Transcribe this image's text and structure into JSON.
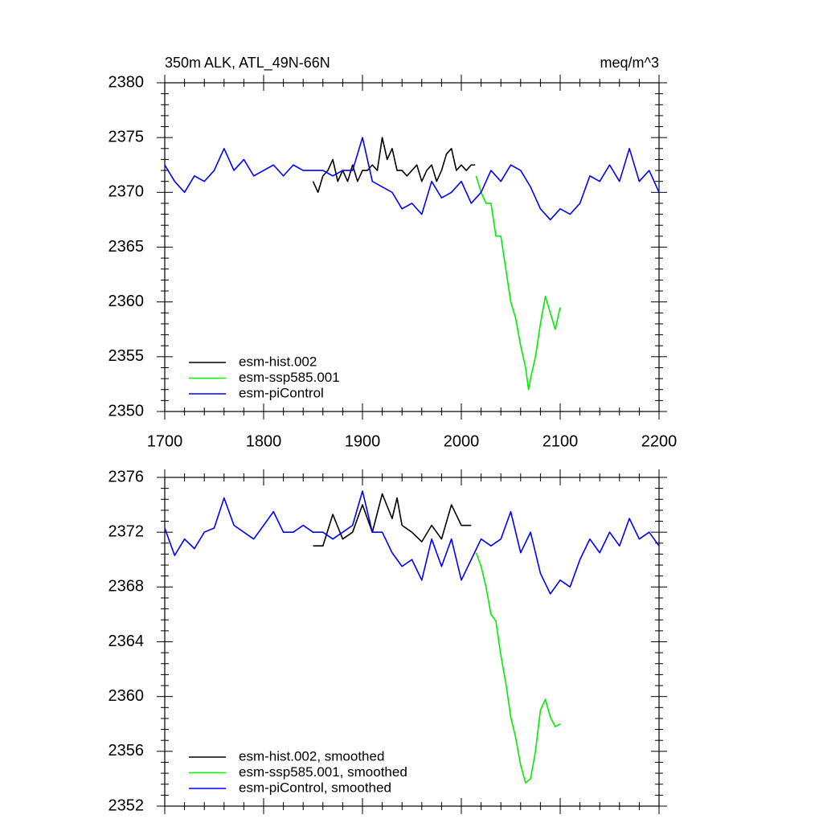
{
  "chart_data": [
    {
      "type": "line",
      "title": "350m ALK, ATL_49N-66N",
      "subtitle": "meq/m^3",
      "xlim": [
        1700,
        2200
      ],
      "xticks": [
        1700,
        1800,
        1900,
        2000,
        2100,
        2200
      ],
      "ylim": [
        2350,
        2380
      ],
      "yticks": [
        2350,
        2355,
        2360,
        2365,
        2370,
        2375,
        2380
      ],
      "legend": "lower left",
      "series": [
        {
          "name": "esm-hist.002",
          "color": "#000000",
          "x": [
            1850,
            1855,
            1860,
            1865,
            1870,
            1875,
            1880,
            1885,
            1890,
            1895,
            1900,
            1905,
            1910,
            1915,
            1920,
            1925,
            1930,
            1935,
            1940,
            1945,
            1950,
            1955,
            1960,
            1965,
            1970,
            1975,
            1980,
            1985,
            1990,
            1995,
            2000,
            2005,
            2010,
            2014
          ],
          "values": [
            2371,
            2370,
            2371.5,
            2372,
            2373,
            2371,
            2372,
            2371,
            2372.5,
            2371,
            2372,
            2372,
            2372.5,
            2372,
            2375,
            2373,
            2374,
            2372,
            2372,
            2371.5,
            2372,
            2372.5,
            2371,
            2372,
            2372.5,
            2371,
            2372,
            2373.5,
            2374,
            2372,
            2372.5,
            2372,
            2372.5,
            2372.5
          ]
        },
        {
          "name": "esm-ssp585.001",
          "color": "#00ee00",
          "x": [
            2015,
            2020,
            2025,
            2030,
            2035,
            2040,
            2045,
            2050,
            2055,
            2060,
            2065,
            2068,
            2070,
            2075,
            2080,
            2085,
            2090,
            2095,
            2100
          ],
          "values": [
            2371.5,
            2370,
            2369,
            2369,
            2366,
            2366,
            2363,
            2360,
            2358.5,
            2356,
            2354,
            2352,
            2353,
            2355,
            2358,
            2360.5,
            2359,
            2357.5,
            2359.5
          ]
        },
        {
          "name": "esm-piControl",
          "color": "#0000ff",
          "x": [
            1700,
            1710,
            1720,
            1730,
            1740,
            1750,
            1760,
            1770,
            1780,
            1790,
            1800,
            1810,
            1820,
            1830,
            1840,
            1850,
            1860,
            1870,
            1880,
            1890,
            1900,
            1910,
            1920,
            1930,
            1940,
            1950,
            1960,
            1970,
            1980,
            1990,
            2000,
            2010,
            2020,
            2030,
            2040,
            2050,
            2060,
            2070,
            2080,
            2090,
            2100,
            2110,
            2120,
            2130,
            2140,
            2150,
            2160,
            2170,
            2180,
            2190,
            2200
          ],
          "values": [
            2372.5,
            2371,
            2370,
            2371.5,
            2371,
            2372,
            2374,
            2372,
            2373,
            2371.5,
            2372,
            2372.5,
            2371.5,
            2372.5,
            2372,
            2372,
            2372,
            2371.5,
            2372,
            2372,
            2375,
            2371,
            2370.5,
            2370,
            2368.5,
            2369,
            2368,
            2371,
            2369.5,
            2370,
            2371,
            2369,
            2370,
            2372,
            2371,
            2372.5,
            2372,
            2370.5,
            2368.5,
            2367.5,
            2368.5,
            2368,
            2369,
            2371.5,
            2371,
            2372.5,
            2371,
            2374,
            2371,
            2372,
            2370
          ]
        }
      ]
    },
    {
      "type": "line",
      "xlim": [
        1700,
        2200
      ],
      "xticks": [
        1700,
        1800,
        1900,
        2000,
        2100,
        2200
      ],
      "ylim": [
        2352,
        2376
      ],
      "yticks": [
        2352,
        2356,
        2360,
        2364,
        2368,
        2372,
        2376
      ],
      "legend": "lower left",
      "series": [
        {
          "name": "esm-hist.002, smoothed",
          "color": "#000000",
          "x": [
            1850,
            1860,
            1870,
            1880,
            1890,
            1900,
            1910,
            1920,
            1930,
            1935,
            1940,
            1950,
            1960,
            1970,
            1980,
            1990,
            2000,
            2010
          ],
          "values": [
            2371,
            2371,
            2373.3,
            2371.5,
            2372,
            2374,
            2372,
            2374.8,
            2373,
            2374.5,
            2372.5,
            2372,
            2371.3,
            2372.5,
            2371.5,
            2374,
            2372.5,
            2372.5
          ]
        },
        {
          "name": "esm-ssp585.001, smoothed",
          "color": "#00ee00",
          "x": [
            2015,
            2020,
            2025,
            2030,
            2035,
            2040,
            2045,
            2050,
            2055,
            2060,
            2065,
            2070,
            2075,
            2080,
            2085,
            2090,
            2095,
            2100
          ],
          "values": [
            2370.5,
            2369.5,
            2368,
            2366,
            2365.5,
            2363,
            2361,
            2358.5,
            2357,
            2355,
            2353.7,
            2354,
            2356,
            2359,
            2359.8,
            2358.5,
            2357.8,
            2358
          ]
        },
        {
          "name": "esm-piControl, smoothed",
          "color": "#0000ff",
          "x": [
            1700,
            1710,
            1720,
            1730,
            1740,
            1750,
            1760,
            1770,
            1780,
            1790,
            1800,
            1810,
            1820,
            1830,
            1840,
            1850,
            1860,
            1870,
            1880,
            1890,
            1900,
            1910,
            1920,
            1930,
            1940,
            1950,
            1960,
            1970,
            1980,
            1990,
            2000,
            2010,
            2020,
            2030,
            2040,
            2050,
            2060,
            2070,
            2080,
            2090,
            2100,
            2110,
            2120,
            2130,
            2140,
            2150,
            2160,
            2170,
            2180,
            2190,
            2200
          ],
          "values": [
            2372.3,
            2370.3,
            2371.5,
            2370.8,
            2372,
            2372.3,
            2374.5,
            2372.5,
            2372,
            2371.5,
            2372.5,
            2373.5,
            2372,
            2372,
            2372.5,
            2372,
            2372,
            2371.5,
            2372,
            2372.5,
            2375,
            2372,
            2372,
            2370.5,
            2369.5,
            2370,
            2368.5,
            2371.5,
            2369.5,
            2371.5,
            2368.5,
            2370,
            2371.5,
            2371,
            2371.5,
            2373.5,
            2370.5,
            2372,
            2369,
            2367.5,
            2368.5,
            2368,
            2370,
            2371.5,
            2370.5,
            2372,
            2371,
            2373,
            2371.5,
            2372,
            2371
          ]
        }
      ]
    }
  ]
}
